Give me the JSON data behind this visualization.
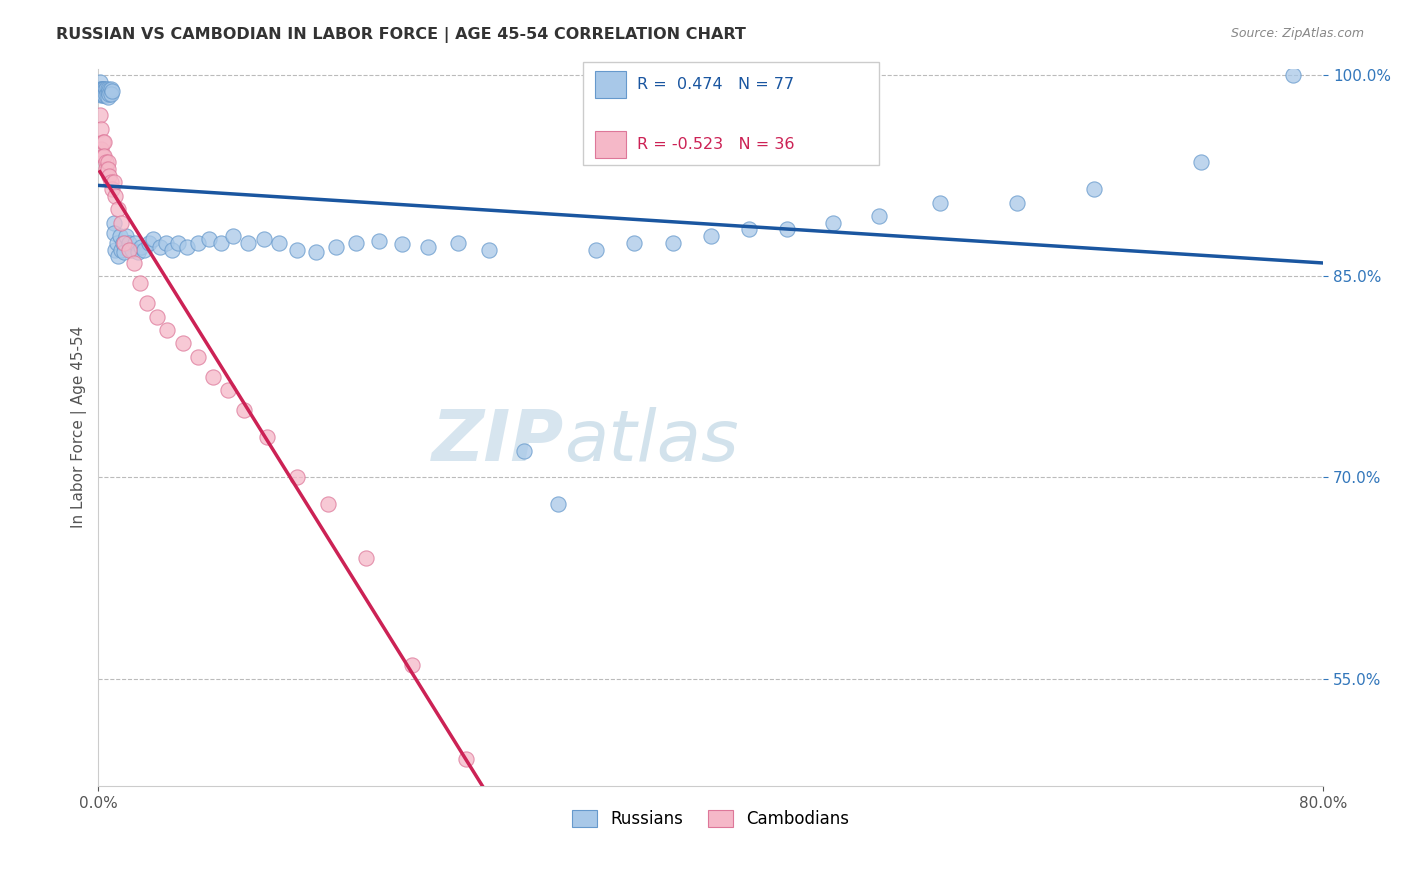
{
  "title": "RUSSIAN VS CAMBODIAN IN LABOR FORCE | AGE 45-54 CORRELATION CHART",
  "source": "Source: ZipAtlas.com",
  "ylabel": "In Labor Force | Age 45-54",
  "xmin": 0.0,
  "xmax": 0.8,
  "ymin": 0.47,
  "ymax": 1.005,
  "y_ticks": [
    0.55,
    0.7,
    0.85,
    1.0
  ],
  "y_tick_labels": [
    "55.0%",
    "70.0%",
    "85.0%",
    "100.0%"
  ],
  "russian_R": 0.474,
  "russian_N": 77,
  "cambodian_R": -0.523,
  "cambodian_N": 36,
  "russian_color": "#a8c8e8",
  "russian_edge_color": "#6699cc",
  "cambodian_color": "#f5b8c8",
  "cambodian_edge_color": "#dd7799",
  "russian_line_color": "#1a56a0",
  "cambodian_line_color": "#cc2255",
  "watermark_color": "#c8dff0",
  "background_color": "#ffffff",
  "grid_color": "#bbbbbb",
  "title_color": "#333333",
  "point_size": 120,
  "russian_points_x": [
    0.001,
    0.001,
    0.002,
    0.002,
    0.002,
    0.003,
    0.003,
    0.003,
    0.003,
    0.004,
    0.004,
    0.004,
    0.005,
    0.005,
    0.005,
    0.006,
    0.006,
    0.006,
    0.007,
    0.007,
    0.008,
    0.008,
    0.009,
    0.01,
    0.01,
    0.011,
    0.012,
    0.013,
    0.014,
    0.015,
    0.016,
    0.017,
    0.018,
    0.02,
    0.022,
    0.024,
    0.026,
    0.028,
    0.03,
    0.033,
    0.036,
    0.04,
    0.044,
    0.048,
    0.052,
    0.058,
    0.065,
    0.072,
    0.08,
    0.088,
    0.098,
    0.108,
    0.118,
    0.13,
    0.142,
    0.155,
    0.168,
    0.183,
    0.198,
    0.215,
    0.235,
    0.255,
    0.278,
    0.3,
    0.325,
    0.35,
    0.375,
    0.4,
    0.425,
    0.45,
    0.48,
    0.51,
    0.55,
    0.6,
    0.65,
    0.72,
    0.78
  ],
  "russian_points_y": [
    0.99,
    0.995,
    0.99,
    0.99,
    0.985,
    0.99,
    0.99,
    0.988,
    0.985,
    0.99,
    0.988,
    0.985,
    0.988,
    0.99,
    0.985,
    0.99,
    0.987,
    0.984,
    0.989,
    0.986,
    0.99,
    0.986,
    0.988,
    0.89,
    0.882,
    0.87,
    0.875,
    0.865,
    0.88,
    0.87,
    0.875,
    0.868,
    0.88,
    0.875,
    0.87,
    0.875,
    0.868,
    0.872,
    0.87,
    0.875,
    0.878,
    0.872,
    0.875,
    0.87,
    0.875,
    0.872,
    0.875,
    0.878,
    0.875,
    0.88,
    0.875,
    0.878,
    0.875,
    0.87,
    0.868,
    0.872,
    0.875,
    0.876,
    0.874,
    0.872,
    0.875,
    0.87,
    0.72,
    0.68,
    0.87,
    0.875,
    0.875,
    0.88,
    0.885,
    0.885,
    0.89,
    0.895,
    0.905,
    0.905,
    0.915,
    0.935,
    1.0
  ],
  "cambodian_points_x": [
    0.001,
    0.002,
    0.002,
    0.003,
    0.003,
    0.004,
    0.004,
    0.005,
    0.005,
    0.006,
    0.006,
    0.007,
    0.008,
    0.009,
    0.01,
    0.011,
    0.013,
    0.015,
    0.017,
    0.02,
    0.023,
    0.027,
    0.032,
    0.038,
    0.045,
    0.055,
    0.065,
    0.075,
    0.085,
    0.095,
    0.11,
    0.13,
    0.15,
    0.175,
    0.205,
    0.24
  ],
  "cambodian_points_y": [
    0.97,
    0.96,
    0.945,
    0.95,
    0.94,
    0.95,
    0.94,
    0.935,
    0.93,
    0.935,
    0.93,
    0.925,
    0.92,
    0.915,
    0.92,
    0.91,
    0.9,
    0.89,
    0.875,
    0.87,
    0.86,
    0.845,
    0.83,
    0.82,
    0.81,
    0.8,
    0.79,
    0.775,
    0.765,
    0.75,
    0.73,
    0.7,
    0.68,
    0.64,
    0.56,
    0.49
  ]
}
